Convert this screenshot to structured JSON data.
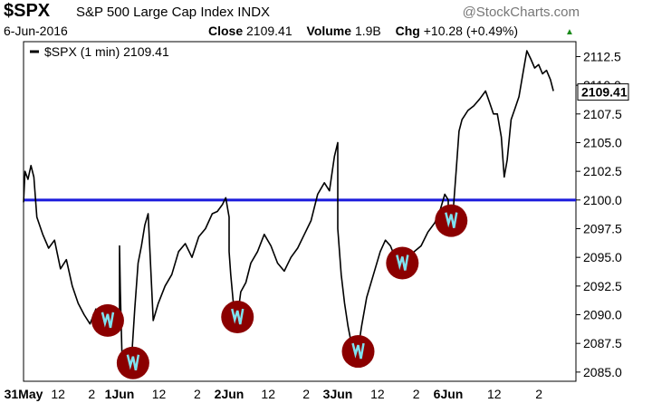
{
  "header": {
    "symbol": "$SPX",
    "index_name": "S&P 500 Large Cap Index",
    "exchange": "INDX",
    "watermark": "@StockCharts.com",
    "date": "6-Jun-2016",
    "close_label": "Close",
    "close_value": "2109.41",
    "volume_label": "Volume",
    "volume_value": "1.9B",
    "chg_label": "Chg",
    "chg_value": "+10.28 (+0.49%)",
    "up_arrow": "▲"
  },
  "chart_data": {
    "type": "line",
    "legend": "$SPX (1 min) 2109.41",
    "legend_placement": "top-left",
    "last_value_label": "2109.41",
    "y_ticks": [
      "2112.5",
      "2110.0",
      "2107.5",
      "2105.0",
      "2102.5",
      "2100.0",
      "2097.5",
      "2095.0",
      "2092.5",
      "2090.0",
      "2087.5",
      "2085.0"
    ],
    "ylim": [
      2084.2,
      2113.8
    ],
    "x_labels": [
      {
        "label": "31May",
        "bold": true,
        "day": 0,
        "hour": 0
      },
      {
        "label": "12",
        "bold": false,
        "day": 0,
        "hour": 12
      },
      {
        "label": "2",
        "bold": false,
        "day": 0,
        "hour": 14
      },
      {
        "label": "1Jun",
        "bold": true,
        "day": 1,
        "hour": 0
      },
      {
        "label": "12",
        "bold": false,
        "day": 1,
        "hour": 12
      },
      {
        "label": "2",
        "bold": false,
        "day": 1,
        "hour": 14
      },
      {
        "label": "2Jun",
        "bold": true,
        "day": 2,
        "hour": 0
      },
      {
        "label": "12",
        "bold": false,
        "day": 2,
        "hour": 12
      },
      {
        "label": "2",
        "bold": false,
        "day": 2,
        "hour": 14
      },
      {
        "label": "3Jun",
        "bold": true,
        "day": 3,
        "hour": 0
      },
      {
        "label": "12",
        "bold": false,
        "day": 3,
        "hour": 12
      },
      {
        "label": "2",
        "bold": false,
        "day": 3,
        "hour": 14
      },
      {
        "label": "6Jun",
        "bold": true,
        "day": 4,
        "hour": 0
      },
      {
        "label": "12",
        "bold": false,
        "day": 4,
        "hour": 12
      },
      {
        "label": "2",
        "bold": false,
        "day": 4,
        "hour": 14
      }
    ],
    "support_level": 2100.0,
    "support_color": "#1a1adc",
    "series": [
      {
        "color": "#000000",
        "points": [
          [
            0,
            9.5,
            2099.8
          ],
          [
            0,
            9.6,
            2102.5
          ],
          [
            0,
            9.8,
            2101.8
          ],
          [
            0,
            10.0,
            2103.0
          ],
          [
            0,
            10.2,
            2102.0
          ],
          [
            0,
            10.4,
            2098.5
          ],
          [
            0,
            10.8,
            2097.0
          ],
          [
            0,
            11.2,
            2095.8
          ],
          [
            0,
            11.6,
            2096.5
          ],
          [
            0,
            12.0,
            2094.0
          ],
          [
            0,
            12.4,
            2094.8
          ],
          [
            0,
            12.8,
            2092.5
          ],
          [
            0,
            13.2,
            2091.0
          ],
          [
            0,
            13.6,
            2090.0
          ],
          [
            0,
            14.0,
            2089.2
          ],
          [
            0,
            14.4,
            2090.5
          ],
          [
            0,
            14.8,
            2089.5
          ],
          [
            0,
            15.2,
            2090.8
          ],
          [
            0,
            15.5,
            2090.2
          ],
          [
            0,
            15.8,
            2089.5
          ],
          [
            0,
            16.0,
            2089.0
          ],
          [
            1,
            9.5,
            2096.0
          ],
          [
            1,
            9.55,
            2092.0
          ],
          [
            1,
            9.65,
            2086.2
          ],
          [
            1,
            9.8,
            2085.5
          ],
          [
            1,
            10.0,
            2086.5
          ],
          [
            1,
            10.2,
            2085.8
          ],
          [
            1,
            10.4,
            2090.5
          ],
          [
            1,
            10.6,
            2094.5
          ],
          [
            1,
            10.8,
            2096.0
          ],
          [
            1,
            11.0,
            2097.8
          ],
          [
            1,
            11.2,
            2098.8
          ],
          [
            1,
            11.5,
            2089.5
          ],
          [
            1,
            11.8,
            2091.0
          ],
          [
            1,
            12.2,
            2092.5
          ],
          [
            1,
            12.6,
            2093.5
          ],
          [
            1,
            13.0,
            2095.5
          ],
          [
            1,
            13.4,
            2096.2
          ],
          [
            1,
            13.8,
            2095.0
          ],
          [
            1,
            14.2,
            2096.8
          ],
          [
            1,
            14.6,
            2097.5
          ],
          [
            1,
            15.0,
            2098.8
          ],
          [
            1,
            15.3,
            2099.0
          ],
          [
            1,
            15.6,
            2099.6
          ],
          [
            1,
            15.8,
            2100.2
          ],
          [
            1,
            16.0,
            2098.5
          ],
          [
            2,
            9.5,
            2095.5
          ],
          [
            2,
            9.6,
            2093.5
          ],
          [
            2,
            9.8,
            2090.3
          ],
          [
            2,
            10.0,
            2089.8
          ],
          [
            2,
            10.2,
            2092.0
          ],
          [
            2,
            10.5,
            2092.8
          ],
          [
            2,
            10.8,
            2094.5
          ],
          [
            2,
            11.2,
            2095.5
          ],
          [
            2,
            11.6,
            2097.0
          ],
          [
            2,
            12.0,
            2096.0
          ],
          [
            2,
            12.4,
            2094.5
          ],
          [
            2,
            12.8,
            2093.8
          ],
          [
            2,
            13.2,
            2095.0
          ],
          [
            2,
            13.6,
            2095.8
          ],
          [
            2,
            14.0,
            2097.0
          ],
          [
            2,
            14.4,
            2098.2
          ],
          [
            2,
            14.8,
            2100.5
          ],
          [
            2,
            15.2,
            2101.5
          ],
          [
            2,
            15.5,
            2100.8
          ],
          [
            2,
            15.8,
            2103.8
          ],
          [
            2,
            16.0,
            2105.0
          ],
          [
            3,
            9.5,
            2097.5
          ],
          [
            3,
            9.7,
            2093.5
          ],
          [
            3,
            9.9,
            2091.0
          ],
          [
            3,
            10.1,
            2089.0
          ],
          [
            3,
            10.3,
            2087.5
          ],
          [
            3,
            10.5,
            2086.0
          ],
          [
            3,
            10.7,
            2087.0
          ],
          [
            3,
            10.9,
            2089.0
          ],
          [
            3,
            11.2,
            2091.5
          ],
          [
            3,
            11.6,
            2093.5
          ],
          [
            3,
            12.0,
            2095.5
          ],
          [
            3,
            12.3,
            2096.5
          ],
          [
            3,
            12.6,
            2096.0
          ],
          [
            3,
            13.0,
            2094.5
          ],
          [
            3,
            13.3,
            2093.8
          ],
          [
            3,
            13.6,
            2094.0
          ],
          [
            3,
            14.0,
            2095.5
          ],
          [
            3,
            14.4,
            2096.0
          ],
          [
            3,
            14.8,
            2097.2
          ],
          [
            3,
            15.2,
            2098.0
          ],
          [
            3,
            15.5,
            2099.0
          ],
          [
            3,
            15.8,
            2100.5
          ],
          [
            3,
            16.0,
            2100.0
          ],
          [
            4,
            9.5,
            2099.5
          ],
          [
            4,
            9.6,
            2097.8
          ],
          [
            4,
            9.75,
            2099.0
          ],
          [
            4,
            9.9,
            2102.5
          ],
          [
            4,
            10.05,
            2106.0
          ],
          [
            4,
            10.2,
            2107.0
          ],
          [
            4,
            10.5,
            2107.8
          ],
          [
            4,
            10.8,
            2108.2
          ],
          [
            4,
            11.1,
            2108.8
          ],
          [
            4,
            11.4,
            2109.5
          ],
          [
            4,
            11.6,
            2108.5
          ],
          [
            4,
            11.8,
            2107.5
          ],
          [
            4,
            12.0,
            2107.5
          ],
          [
            4,
            12.2,
            2105.5
          ],
          [
            4,
            12.35,
            2102.0
          ],
          [
            4,
            12.5,
            2103.5
          ],
          [
            4,
            12.7,
            2107.0
          ],
          [
            4,
            12.9,
            2108.0
          ],
          [
            4,
            13.1,
            2109.0
          ],
          [
            4,
            13.3,
            2111.0
          ],
          [
            4,
            13.5,
            2113.0
          ],
          [
            4,
            13.7,
            2112.3
          ],
          [
            4,
            13.9,
            2111.5
          ],
          [
            4,
            14.1,
            2111.8
          ],
          [
            4,
            14.3,
            2111.0
          ],
          [
            4,
            14.5,
            2111.3
          ],
          [
            4,
            14.7,
            2110.5
          ],
          [
            4,
            14.85,
            2109.5
          ]
        ]
      }
    ],
    "highlights": [
      {
        "day": 0,
        "hour": 15.2,
        "value": 2089.5
      },
      {
        "day": 1,
        "hour": 10.3,
        "value": 2085.8
      },
      {
        "day": 2,
        "hour": 10.0,
        "value": 2089.8
      },
      {
        "day": 3,
        "hour": 10.7,
        "value": 2086.8
      },
      {
        "day": 3,
        "hour": 13.3,
        "value": 2094.5
      },
      {
        "day": 4,
        "hour": 9.65,
        "value": 2098.2
      }
    ],
    "highlight_fill": "#8b0000",
    "spike_color": "#7fe3f0"
  }
}
